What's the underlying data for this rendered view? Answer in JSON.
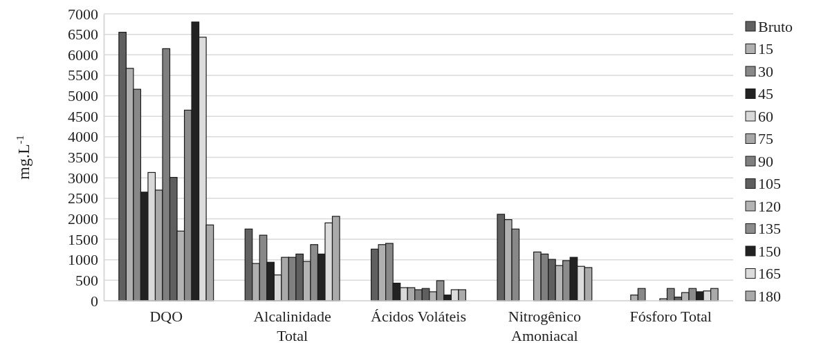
{
  "chart_data": {
    "type": "bar",
    "ylabel": "mg.L$^{-1}$",
    "categories": [
      "DQO",
      "Alcalinidade Total",
      "Ácidos Voláteis",
      "Nitrogênico Amoniacal",
      "Fósforo Total"
    ],
    "ylim": [
      0,
      7000
    ],
    "yticks": [
      0,
      500,
      1000,
      1500,
      2000,
      2500,
      3000,
      3500,
      4000,
      4500,
      5000,
      5500,
      6000,
      6500,
      7000
    ],
    "grid": "y",
    "legend": "right",
    "series": [
      {
        "name": "Bruto",
        "color": "#606060",
        "values": [
          6550,
          1750,
          1260,
          2110,
          null
        ]
      },
      {
        "name": "15",
        "color": "#b0b0b0",
        "values": [
          5670,
          910,
          1370,
          1980,
          140
        ]
      },
      {
        "name": "30",
        "color": "#888888",
        "values": [
          5160,
          1600,
          1400,
          1750,
          300
        ]
      },
      {
        "name": "45",
        "color": "#222222",
        "values": [
          2650,
          940,
          430,
          null,
          null
        ]
      },
      {
        "name": "60",
        "color": "#d9d9d9",
        "values": [
          3130,
          630,
          320,
          null,
          null
        ]
      },
      {
        "name": "75",
        "color": "#a8a8a8",
        "values": [
          2700,
          1060,
          320,
          1190,
          50
        ]
      },
      {
        "name": "90",
        "color": "#7f7f7f",
        "values": [
          6150,
          1060,
          270,
          1140,
          300
        ]
      },
      {
        "name": "105",
        "color": "#5f5f5f",
        "values": [
          3010,
          1140,
          300,
          1010,
          90
        ]
      },
      {
        "name": "120",
        "color": "#b4b4b4",
        "values": [
          1700,
          960,
          220,
          860,
          200
        ]
      },
      {
        "name": "135",
        "color": "#8c8c8c",
        "values": [
          4650,
          1370,
          490,
          980,
          300
        ]
      },
      {
        "name": "150",
        "color": "#222222",
        "values": [
          6800,
          1140,
          140,
          1060,
          220
        ]
      },
      {
        "name": "165",
        "color": "#dcdcdc",
        "values": [
          6430,
          1900,
          270,
          840,
          240
        ]
      },
      {
        "name": "180",
        "color": "#aaaaaa",
        "values": [
          1850,
          2060,
          270,
          810,
          300
        ]
      }
    ]
  }
}
